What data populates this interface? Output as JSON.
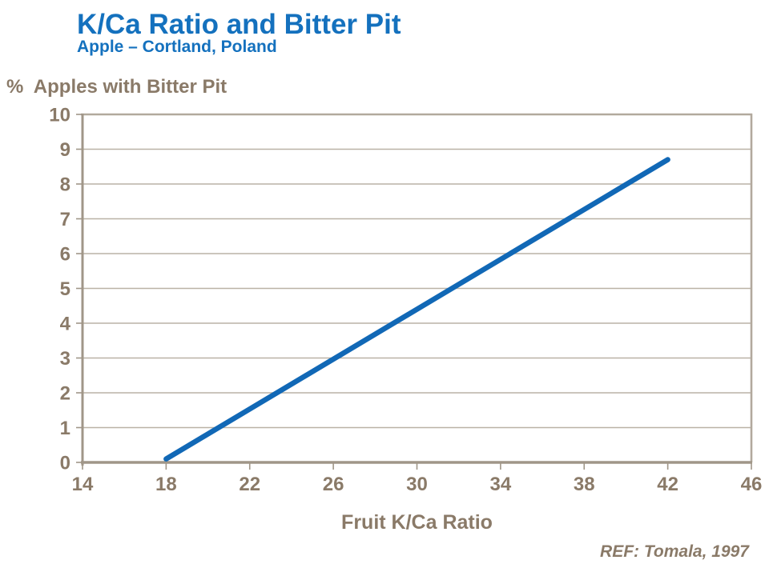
{
  "header": {
    "title": "K/Ca Ratio and Bitter Pit",
    "subtitle": "Apple – Cortland, Poland"
  },
  "footer": {
    "reference": "REF: Tomala, 1997"
  },
  "colors": {
    "accent_blue": "#1471BE",
    "line_blue": "#1168B6",
    "text_brown": "#8A7A68",
    "axis": "#A09688",
    "tick": "#A09688",
    "gridline": "#BAB2A6",
    "border": "#B2A99D",
    "background": "#FFFFFF"
  },
  "chart_data": {
    "type": "line",
    "title": "K/Ca Ratio and Bitter Pit",
    "subtitle": "Apple – Cortland, Poland",
    "xlabel": "Fruit K/Ca Ratio",
    "ylabel": "%  Apples with Bitter Pit",
    "xlim": [
      14,
      46
    ],
    "ylim": [
      0,
      10
    ],
    "x_ticks": [
      14,
      18,
      22,
      26,
      30,
      34,
      38,
      42,
      46
    ],
    "y_ticks": [
      0,
      1,
      2,
      3,
      4,
      5,
      6,
      7,
      8,
      9,
      10
    ],
    "grid": "horizontal",
    "legend": "none",
    "series": [
      {
        "x": [
          18,
          42
        ],
        "y": [
          0.1,
          8.7
        ]
      }
    ],
    "annotation": "REF: Tomala, 1997"
  }
}
